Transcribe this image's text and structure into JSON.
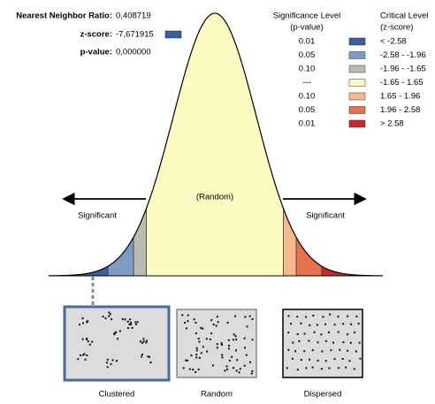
{
  "stats": [
    {
      "label": "Nearest Neighbor Ratio:",
      "value": "0,408719"
    },
    {
      "label": "z-score:",
      "value": "-7,671915"
    },
    {
      "label": "p-value:",
      "value": "0,000000"
    }
  ],
  "legend": {
    "significance_header": [
      "Significance Level",
      "(p-value)"
    ],
    "critical_header": [
      "Critical Level",
      "(z-score)"
    ],
    "rows": [
      {
        "p": "0.01",
        "z": "< -2.58",
        "color": "#3b5e9e"
      },
      {
        "p": "0.05",
        "z": "-2.58 - -1.96",
        "color": "#7f9bc2"
      },
      {
        "p": "0.10",
        "z": "-1.96 - -1.65",
        "color": "#b9bdb1"
      },
      {
        "p": "---",
        "z": "-1.65 - 1.65",
        "color": "#fdfbc2"
      },
      {
        "p": "0.10",
        "z": "1.65 - 1.96",
        "color": "#f8b98b"
      },
      {
        "p": "0.05",
        "z": "1.96 - 2.58",
        "color": "#e8714f"
      },
      {
        "p": "0.01",
        "z": "> 2.58",
        "color": "#c4292d"
      }
    ]
  },
  "curve": {
    "left_label": "Significant",
    "center_label": "(Random)",
    "right_label": "Significant"
  },
  "patterns": [
    "Clustered",
    "Random",
    "Dispersed"
  ]
}
